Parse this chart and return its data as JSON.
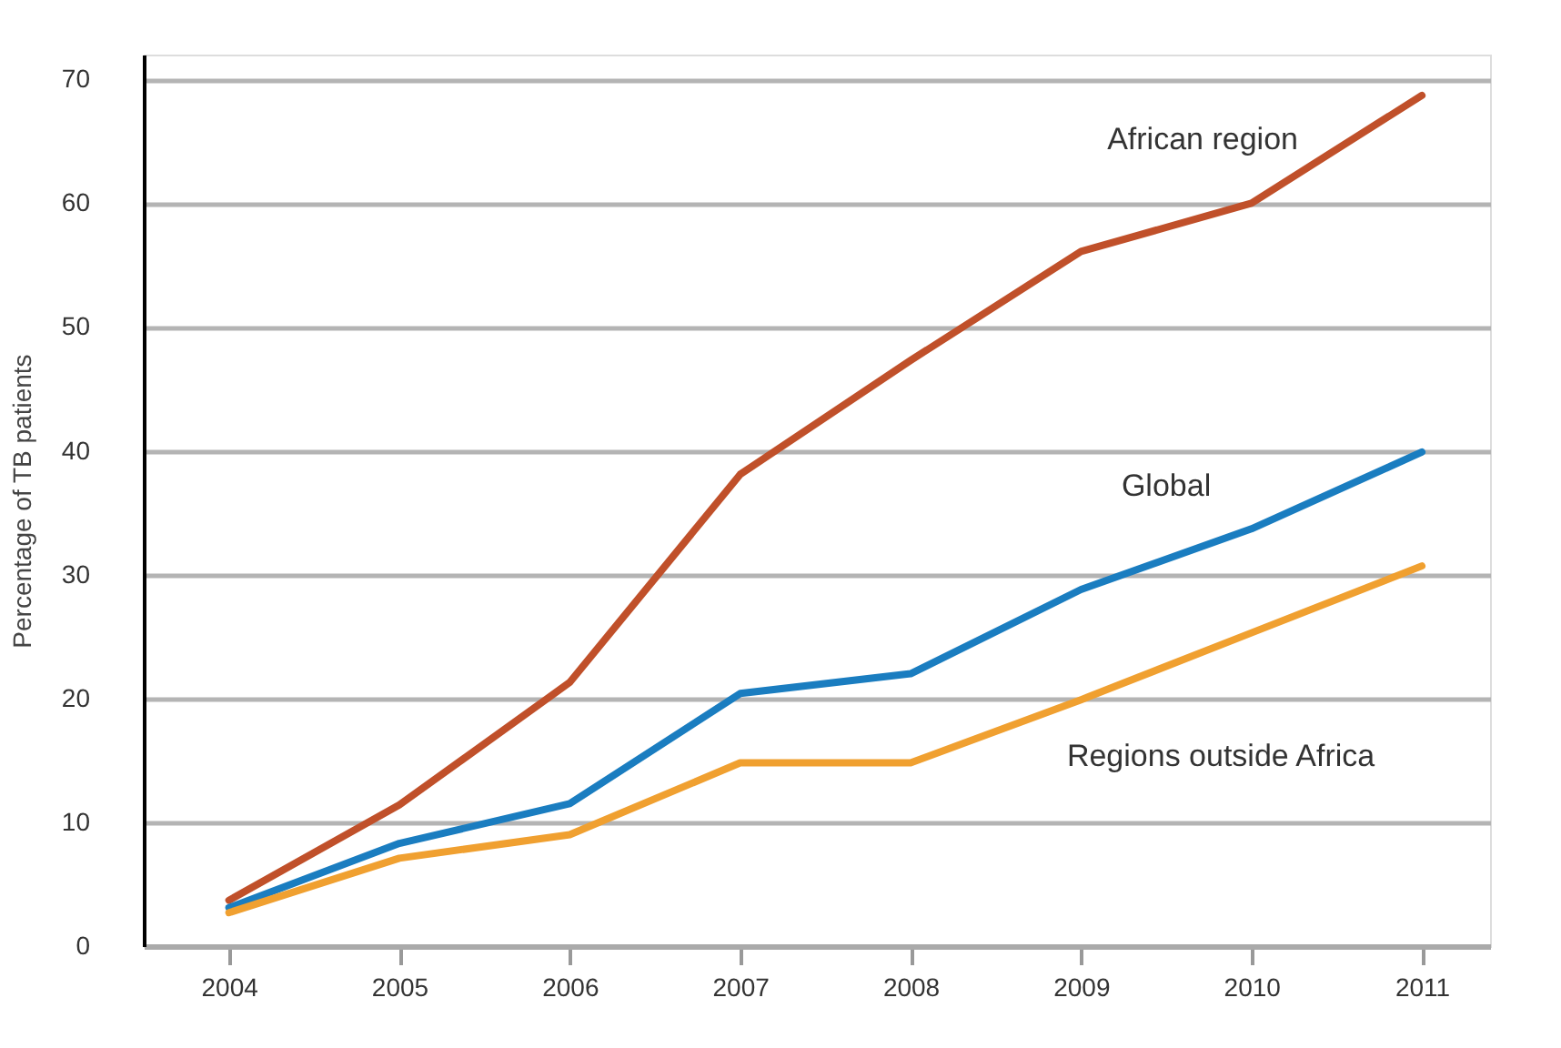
{
  "chart_data": {
    "type": "line",
    "ylabel": "Percentage of TB patients",
    "x": [
      2004,
      2005,
      2006,
      2007,
      2008,
      2009,
      2010,
      2011
    ],
    "series": [
      {
        "name": "African region",
        "color": "#c0502a",
        "values": [
          3.7,
          11.4,
          21.3,
          38.1,
          47.3,
          56.1,
          60.0,
          68.7
        ]
      },
      {
        "name": "Global",
        "color": "#1a7dc0",
        "values": [
          3.1,
          8.3,
          11.5,
          20.4,
          22.0,
          28.8,
          33.7,
          39.9
        ]
      },
      {
        "name": "Regions outside Africa",
        "color": "#f0a030",
        "values": [
          2.7,
          7.1,
          9.0,
          14.8,
          14.8,
          19.9,
          25.3,
          30.7
        ]
      }
    ],
    "xlim": [
      2003.5,
      2011.4
    ],
    "xticks": [
      2004,
      2005,
      2006,
      2007,
      2008,
      2009,
      2010,
      2011
    ],
    "ylim": [
      0,
      72
    ],
    "yticks": [
      0,
      10,
      20,
      30,
      40,
      50,
      60,
      70
    ],
    "grid": "y",
    "legend": false,
    "marker": "none",
    "line_style": "solid"
  }
}
